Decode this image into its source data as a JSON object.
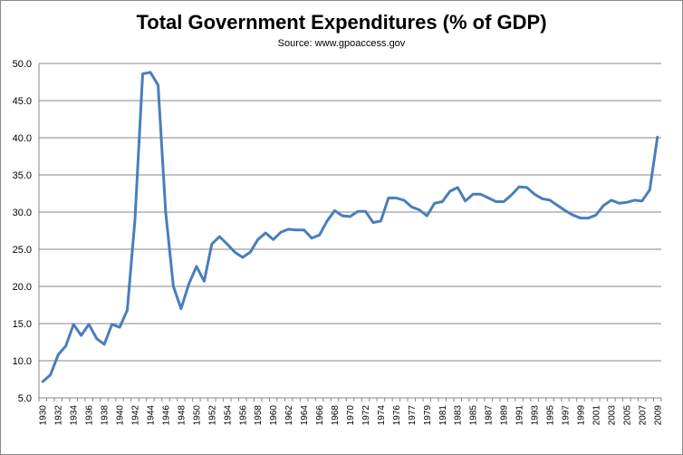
{
  "chart_data": {
    "type": "line",
    "title": "Total Government Expenditures (% of GDP)",
    "subtitle": "Source: www.gpoaccess.gov",
    "xlabel": "",
    "ylabel": "",
    "ylim": [
      5.0,
      50.0
    ],
    "yticks": [
      "5.0",
      "10.0",
      "15.0",
      "20.0",
      "25.0",
      "30.0",
      "35.0",
      "40.0",
      "45.0",
      "50.0"
    ],
    "grid": true,
    "legend": "none",
    "x": [
      1930,
      1931,
      1932,
      1933,
      1934,
      1935,
      1936,
      1937,
      1938,
      1939,
      1940,
      1941,
      1942,
      1943,
      1944,
      1945,
      1946,
      1947,
      1948,
      1949,
      1950,
      1951,
      1952,
      1953,
      1954,
      1955,
      1956,
      1957,
      1958,
      1959,
      1960,
      1961,
      1962,
      1963,
      1964,
      1965,
      1966,
      1967,
      1968,
      1969,
      1970,
      1971,
      1972,
      1973,
      1974,
      1975,
      1976,
      "TQ",
      1977,
      1978,
      1979,
      1980,
      1981,
      1982,
      1983,
      1984,
      1985,
      1986,
      1987,
      1988,
      1989,
      1990,
      1991,
      1992,
      1993,
      1994,
      1995,
      1996,
      1997,
      1998,
      1999,
      2000,
      2001,
      2002,
      2003,
      2004,
      2005,
      2006,
      2007,
      2008,
      2009
    ],
    "xticks": [
      "1930",
      "1932",
      "1934",
      "1936",
      "1938",
      "1940",
      "1942",
      "1944",
      "1946",
      "1948",
      "1950",
      "1952",
      "1954",
      "1956",
      "1958",
      "1960",
      "1962",
      "1964",
      "1966",
      "1968",
      "1970",
      "1972",
      "1974",
      "1976",
      "1977",
      "1979",
      "1981",
      "1983",
      "1985",
      "1987",
      "1989",
      "1991",
      "1993",
      "1995",
      "1997",
      "1999",
      "2001",
      "2003",
      "2005",
      "2007",
      "2009"
    ],
    "values": [
      7.2,
      8.1,
      10.8,
      12.0,
      14.9,
      13.4,
      14.9,
      13.0,
      12.2,
      14.9,
      14.5,
      16.8,
      29.0,
      48.6,
      48.8,
      47.1,
      30.0,
      20.0,
      17.0,
      20.3,
      22.7,
      20.7,
      25.7,
      26.7,
      25.7,
      24.6,
      23.9,
      24.6,
      26.3,
      27.2,
      26.3,
      27.3,
      27.7,
      27.6,
      27.6,
      26.5,
      26.9,
      28.8,
      30.2,
      29.5,
      29.4,
      30.1,
      30.1,
      28.6,
      28.8,
      31.9,
      31.9,
      31.6,
      30.7,
      30.3,
      29.5,
      31.2,
      31.4,
      32.8,
      33.3,
      31.5,
      32.4,
      32.4,
      31.9,
      31.4,
      31.4,
      32.3,
      33.4,
      33.3,
      32.4,
      31.8,
      31.6,
      30.9,
      30.2,
      29.6,
      29.2,
      29.2,
      29.6,
      30.9,
      31.6,
      31.2,
      31.3,
      31.6,
      31.5,
      33.0,
      40.1
    ],
    "line_color": "#4a7ebb",
    "grid_color": "#878787"
  }
}
